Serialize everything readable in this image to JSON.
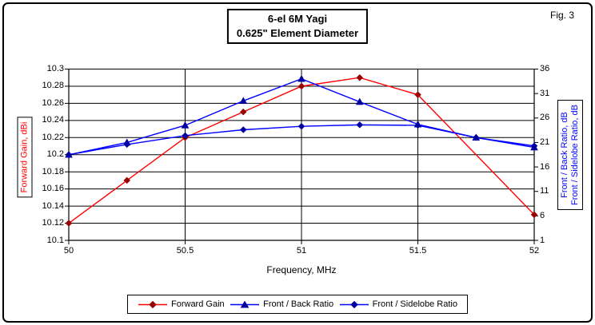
{
  "frame": {
    "fig_label": "Fig. 3"
  },
  "chart_data": {
    "type": "line",
    "title": "6-el 6M Yagi",
    "subtitle": "0.625\" Element Diameter",
    "grid": "both",
    "legend_position": "bottom",
    "x_axis": {
      "label": "Frequency, MHz",
      "range": [
        50,
        52
      ],
      "ticks": [
        "50",
        "50.5",
        "51",
        "51.5",
        "52"
      ]
    },
    "left_axis": {
      "label": "Forward Gain, dBi",
      "color": "#FF0000",
      "range": [
        10.1,
        10.3
      ],
      "ticks": [
        "10.3",
        "10.28",
        "10.26",
        "10.24",
        "10.22",
        "10.2",
        "10.18",
        "10.16",
        "10.14",
        "10.12",
        "10.1"
      ]
    },
    "right_axis": {
      "label_line1": "Front / Back Ratio, dB",
      "label_line2": "Front / Sidelobe Ratio, dB",
      "color": "#0000FF",
      "range": [
        1,
        36
      ],
      "ticks": [
        "36",
        "31",
        "26",
        "21",
        "16",
        "11",
        "6",
        "1"
      ]
    },
    "series": [
      {
        "name": "Forward Gain",
        "axis": "left",
        "marker": "diamond",
        "line_color": "#FF0000",
        "marker_color": "#990000",
        "x": [
          50,
          50.25,
          50.5,
          50.75,
          51,
          51.25,
          51.5,
          52
        ],
        "y": [
          10.12,
          10.17,
          10.22,
          10.25,
          10.28,
          10.29,
          10.27,
          10.13
        ]
      },
      {
        "name": "Front / Back Ratio",
        "axis": "right",
        "marker": "triangle",
        "line_color": "#0000FF",
        "marker_color": "#0000A0",
        "x": [
          50,
          50.25,
          50.5,
          50.75,
          51,
          51.25,
          51.5,
          51.75,
          52
        ],
        "y": [
          18.5,
          21,
          24.5,
          29.5,
          34,
          29.3,
          24.7,
          22,
          20
        ]
      },
      {
        "name": "Front / Sidelobe Ratio",
        "axis": "right",
        "marker": "diamond",
        "line_color": "#0000FF",
        "marker_color": "#0000A0",
        "x": [
          50,
          50.25,
          50.5,
          50.75,
          51,
          51.25,
          51.5,
          51.75,
          52
        ],
        "y": [
          18.5,
          20.6,
          22.4,
          23.6,
          24.3,
          24.6,
          24.5,
          22,
          20.3
        ]
      }
    ]
  }
}
